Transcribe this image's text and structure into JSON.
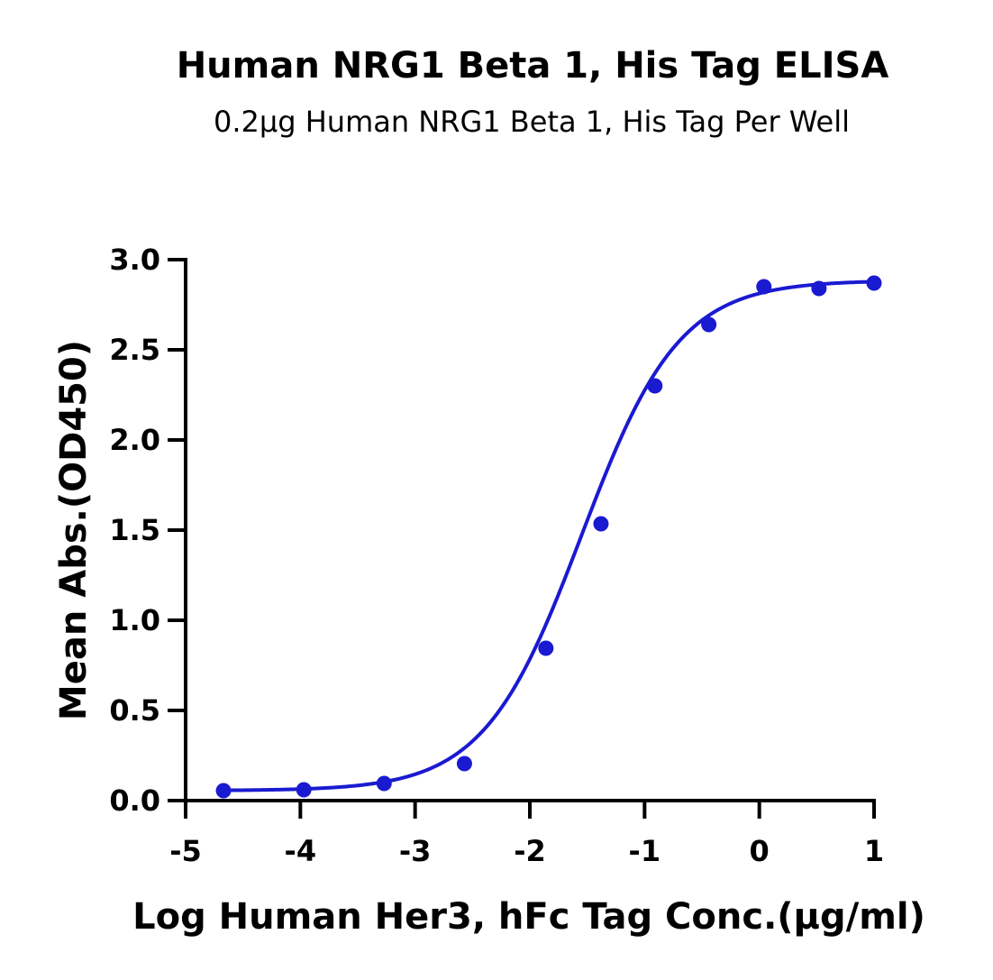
{
  "chart_data": {
    "type": "scatter",
    "title": "Human NRG1 Beta 1, His Tag ELISA",
    "subtitle": "0.2μg Human NRG1 Beta 1, His Tag Per Well",
    "xlabel": "Log Human Her3, hFc Tag Conc.(μg/ml)",
    "ylabel": "Mean Abs.(OD450)",
    "xlim": [
      -5,
      1
    ],
    "ylim": [
      0,
      3.0
    ],
    "x_ticks": [
      -5,
      -4,
      -3,
      -2,
      -1,
      0,
      1
    ],
    "x_tick_labels": [
      "-5",
      "-4",
      "-3",
      "-2",
      "-1",
      "0",
      "1"
    ],
    "y_ticks": [
      0,
      0.5,
      1.0,
      1.5,
      2.0,
      2.5,
      3.0
    ],
    "y_tick_labels": [
      "0.0",
      "0.5",
      "1.0",
      "1.5",
      "2.0",
      "2.5",
      "3.0"
    ],
    "grid": false,
    "color": "#1a1ad1",
    "series": [
      {
        "x": [
          -4.67,
          -3.97,
          -3.27,
          -2.57,
          -1.86,
          -1.38,
          -0.91,
          -0.44,
          0.04,
          0.52,
          1.0
        ],
        "y": [
          0.055,
          0.06,
          0.095,
          0.205,
          0.845,
          1.535,
          2.3,
          2.64,
          2.85,
          2.84,
          2.87
        ]
      }
    ],
    "fit": {
      "model": "4PL",
      "bottom": 0.055,
      "top": 2.885,
      "log_ec50": -1.55,
      "hill_slope": 1.02
    }
  }
}
